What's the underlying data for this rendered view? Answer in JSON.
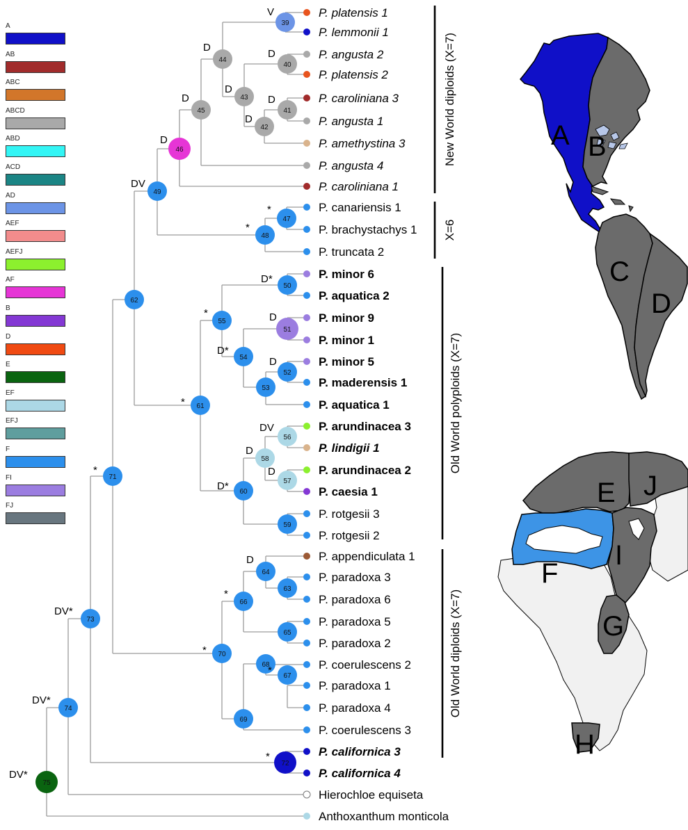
{
  "legend": {
    "items": [
      {
        "label": "A",
        "color": "#1010c8"
      },
      {
        "label": "AB",
        "color": "#a12b2b"
      },
      {
        "label": "ABC",
        "color": "#d2762a"
      },
      {
        "label": "ABCD",
        "color": "#a9a9a9"
      },
      {
        "label": "ABD",
        "color": "#33f5f5"
      },
      {
        "label": "ACD",
        "color": "#1b8585"
      },
      {
        "label": "AD",
        "color": "#6c94e6"
      },
      {
        "label": "AEF",
        "color": "#f28c8c"
      },
      {
        "label": "AEFJ",
        "color": "#8cf02e"
      },
      {
        "label": "AF",
        "color": "#e635d6"
      },
      {
        "label": "B",
        "color": "#8438d4"
      },
      {
        "label": "D",
        "color": "#f04a12"
      },
      {
        "label": "E",
        "color": "#0a6410"
      },
      {
        "label": "EF",
        "color": "#acd8e6"
      },
      {
        "label": "EFJ",
        "color": "#5f9e9e"
      },
      {
        "label": "F",
        "color": "#2c8fec"
      },
      {
        "label": "FI",
        "color": "#9b7de0"
      },
      {
        "label": "FJ",
        "color": "#68767f"
      }
    ]
  },
  "tips": [
    {
      "name": "P. platensis 1",
      "style": "italic",
      "color": "#e8541e"
    },
    {
      "name": "P. lemmonii 1",
      "style": "italic",
      "color": "#1010c8"
    },
    {
      "name": "P. angusta 2",
      "style": "italic",
      "color": "#a9a9a9"
    },
    {
      "name": "P. platensis 2",
      "style": "italic",
      "color": "#e8541e"
    },
    {
      "name": "P. caroliniana 3",
      "style": "italic",
      "color": "#a12b2b"
    },
    {
      "name": "P. angusta 1",
      "style": "italic",
      "color": "#a9a9a9"
    },
    {
      "name": "P. amethystina 3",
      "style": "italic",
      "color": "#d9b38c"
    },
    {
      "name": "P. angusta 4",
      "style": "italic",
      "color": "#a9a9a9"
    },
    {
      "name": "P. caroliniana 1",
      "style": "italic",
      "color": "#a12b2b"
    },
    {
      "name": "P. canariensis 1",
      "style": "normal",
      "color": "#2c8fec"
    },
    {
      "name": "P. brachystachys 1",
      "style": "normal",
      "color": "#2c8fec"
    },
    {
      "name": "P. truncata 2",
      "style": "normal",
      "color": "#2c8fec"
    },
    {
      "name": "P. minor 6",
      "style": "bold",
      "color": "#9b7de0"
    },
    {
      "name": "P. aquatica 2",
      "style": "bold",
      "color": "#2c8fec"
    },
    {
      "name": "P. minor 9",
      "style": "bold",
      "color": "#9b7de0"
    },
    {
      "name": "P. minor 1",
      "style": "bold",
      "color": "#9b7de0"
    },
    {
      "name": "P. minor 5",
      "style": "bold",
      "color": "#9b7de0"
    },
    {
      "name": "P. maderensis 1",
      "style": "bold",
      "color": "#2c8fec"
    },
    {
      "name": "P. aquatica 1",
      "style": "bold",
      "color": "#2c8fec"
    },
    {
      "name": "P. arundinacea 3",
      "style": "bold",
      "color": "#8cf02e"
    },
    {
      "name": "P. lindigii 1",
      "style": "bolditalic",
      "color": "#d9b38c"
    },
    {
      "name": "P. arundinacea 2",
      "style": "bold",
      "color": "#8cf02e"
    },
    {
      "name": "P. caesia 1",
      "style": "bold",
      "color": "#8438d4"
    },
    {
      "name": "P. rotgesii 3",
      "style": "normal",
      "color": "#2c8fec"
    },
    {
      "name": "P. rotgesii 2",
      "style": "normal",
      "color": "#2c8fec"
    },
    {
      "name": "P. appendiculata 1",
      "style": "normal",
      "color": "#9c5a35"
    },
    {
      "name": "P. paradoxa 3",
      "style": "normal",
      "color": "#2c8fec"
    },
    {
      "name": "P. paradoxa 6",
      "style": "normal",
      "color": "#2c8fec"
    },
    {
      "name": "P. paradoxa 5",
      "style": "normal",
      "color": "#2c8fec"
    },
    {
      "name": "P. paradoxa 2",
      "style": "normal",
      "color": "#2c8fec"
    },
    {
      "name": "P. coerulescens 2",
      "style": "normal",
      "color": "#2c8fec"
    },
    {
      "name": "P. paradoxa 1",
      "style": "normal",
      "color": "#2c8fec"
    },
    {
      "name": "P. paradoxa 4",
      "style": "normal",
      "color": "#2c8fec"
    },
    {
      "name": "P. coerulescens 3",
      "style": "normal",
      "color": "#2c8fec"
    },
    {
      "name": "P. californica 3",
      "style": "bolditalic",
      "color": "#1010c8"
    },
    {
      "name": "P. californica 4",
      "style": "bolditalic",
      "color": "#1010c8"
    },
    {
      "name": "Hierochloe equiseta",
      "style": "normal",
      "color": "#ffffff"
    },
    {
      "name": "Anthoxanthum monticola",
      "style": "normal",
      "color": "#acd8e6"
    }
  ],
  "nodes": [
    {
      "id": "39",
      "label": "V",
      "color": "#6c94e6"
    },
    {
      "id": "40",
      "label": "D",
      "color": "#a9a9a9"
    },
    {
      "id": "41",
      "label": "D",
      "color": "#a9a9a9"
    },
    {
      "id": "42",
      "label": "D",
      "color": "#a9a9a9"
    },
    {
      "id": "43",
      "label": "D",
      "color": "#a9a9a9"
    },
    {
      "id": "44",
      "label": "D",
      "color": "#a9a9a9"
    },
    {
      "id": "45",
      "label": "D",
      "color": "#a9a9a9"
    },
    {
      "id": "46",
      "label": "D",
      "color": "#e635d6"
    },
    {
      "id": "47",
      "label": "*",
      "color": "#2c8fec"
    },
    {
      "id": "48",
      "label": "*",
      "color": "#2c8fec"
    },
    {
      "id": "49",
      "label": "DV",
      "color": "#2c8fec"
    },
    {
      "id": "50",
      "label": "D*",
      "color": "#2c8fec"
    },
    {
      "id": "51",
      "label": "D",
      "color": "#9b7de0"
    },
    {
      "id": "52",
      "label": "D",
      "color": "#2c8fec"
    },
    {
      "id": "53",
      "label": "",
      "color": "#2c8fec"
    },
    {
      "id": "54",
      "label": "D*",
      "color": "#2c8fec"
    },
    {
      "id": "55",
      "label": "*",
      "color": "#2c8fec"
    },
    {
      "id": "56",
      "label": "DV",
      "color": "#acd8e6"
    },
    {
      "id": "57",
      "label": "D",
      "color": "#acd8e6"
    },
    {
      "id": "58",
      "label": "D",
      "color": "#acd8e6"
    },
    {
      "id": "59",
      "label": "",
      "color": "#2c8fec"
    },
    {
      "id": "60",
      "label": "D*",
      "color": "#2c8fec"
    },
    {
      "id": "61",
      "label": "*",
      "color": "#2c8fec"
    },
    {
      "id": "62",
      "label": "",
      "color": "#2c8fec"
    },
    {
      "id": "63",
      "label": "",
      "color": "#2c8fec"
    },
    {
      "id": "64",
      "label": "D",
      "color": "#2c8fec"
    },
    {
      "id": "65",
      "label": "",
      "color": "#2c8fec"
    },
    {
      "id": "66",
      "label": "*",
      "color": "#2c8fec"
    },
    {
      "id": "67",
      "label": "*",
      "color": "#2c8fec"
    },
    {
      "id": "68",
      "label": "",
      "color": "#2c8fec"
    },
    {
      "id": "69",
      "label": "",
      "color": "#2c8fec"
    },
    {
      "id": "70",
      "label": "*",
      "color": "#2c8fec"
    },
    {
      "id": "71",
      "label": "*",
      "color": "#2c8fec"
    },
    {
      "id": "72",
      "label": "*",
      "color": "#1010c8"
    },
    {
      "id": "73",
      "label": "DV*",
      "color": "#2c8fec"
    },
    {
      "id": "74",
      "label": "DV*",
      "color": "#2c8fec"
    },
    {
      "id": "75",
      "label": "DV*",
      "color": "#0a6410"
    }
  ],
  "groups": [
    {
      "label": "New World diploids (X=7)"
    },
    {
      "label": "X=6"
    },
    {
      "label": "Old World polyploids (X=7)"
    },
    {
      "label": "Old World diploids (X=7)"
    }
  ],
  "maps": {
    "americas_regions": [
      "A",
      "B",
      "C",
      "D"
    ],
    "old_world_regions": [
      "E",
      "J",
      "F",
      "I",
      "G",
      "H"
    ],
    "colors": {
      "A": "#1010c8",
      "B": "#6b6b6b",
      "C": "#6b6b6b",
      "D": "#6b6b6b",
      "E": "#6b6b6b",
      "J": "#6b6b6b",
      "F": "#3d94e6",
      "I": "#6b6b6b",
      "G": "#6b6b6b",
      "H": "#6b6b6b",
      "other": "#f1f1f1",
      "lakes": "#b7c7e8"
    }
  }
}
